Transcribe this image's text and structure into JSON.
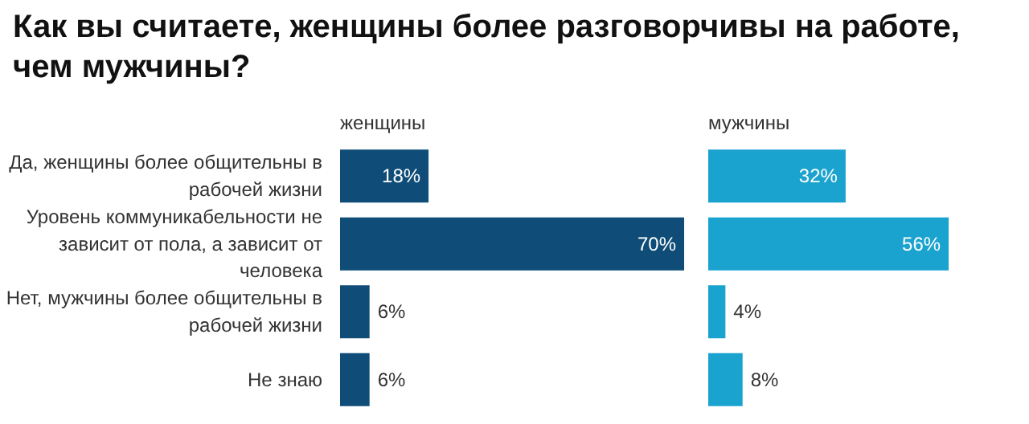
{
  "chart_data": [
    {
      "type": "bar",
      "orientation": "horizontal",
      "title": "Как вы считаете, женщины более разговорчивы на работе, чем мужчины?",
      "subtitle": "женщины",
      "categories": [
        "Да, женщины более общительны в рабочей жизни",
        "Уровень коммуникабельности не зависит от пола, а зависит от человека",
        "Нет, мужчины более общительны в рабочей жизни",
        "Не знаю"
      ],
      "values": [
        18,
        70,
        6,
        6
      ],
      "value_labels": [
        "18%",
        "70%",
        "6%",
        "6%"
      ],
      "color": "#0f4d78"
    },
    {
      "type": "bar",
      "orientation": "horizontal",
      "subtitle": "мужчины",
      "categories": [
        "Да, женщины более общительны в рабочей жизни",
        "Уровень коммуникабельности не зависит от пола, а зависит от человека",
        "Нет, мужчины более общительны в рабочей жизни",
        "Не знаю"
      ],
      "values": [
        32,
        56,
        4,
        8
      ],
      "value_labels": [
        "32%",
        "56%",
        "4%",
        "8%"
      ],
      "color": "#1ba3cf",
      "tick_labels": false
    }
  ]
}
